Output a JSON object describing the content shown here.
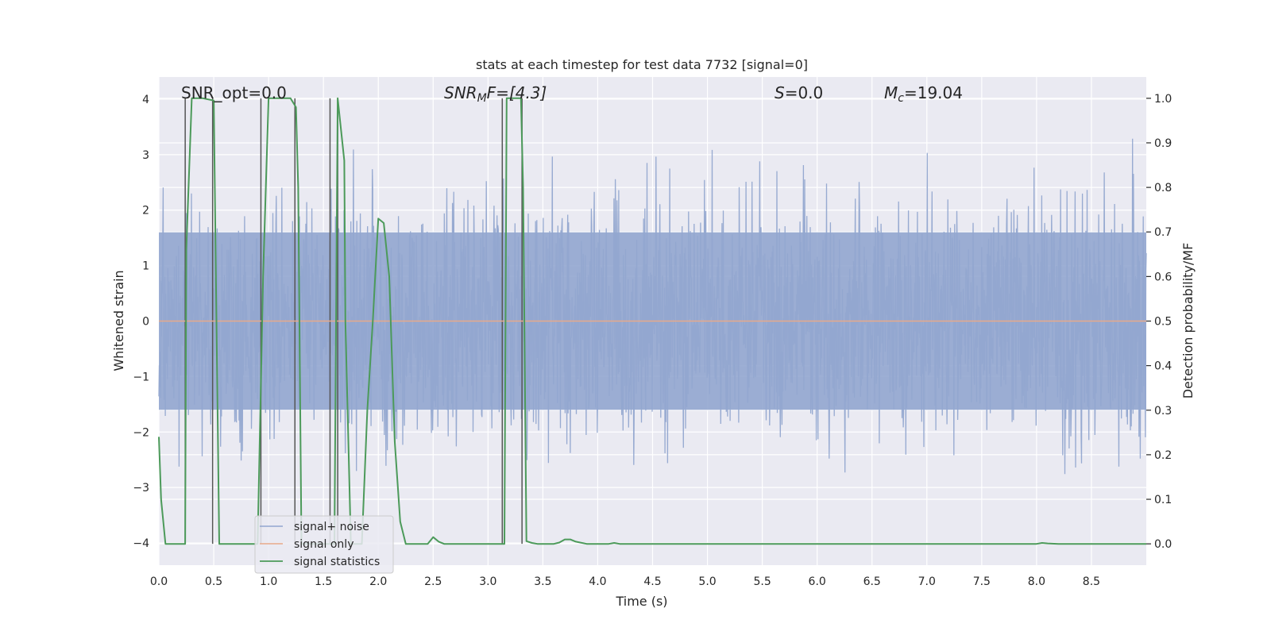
{
  "chart_data": {
    "type": "line",
    "title": "stats at each timestep for test data 7732 [signal=0]",
    "xlabel": "Time (s)",
    "ylabel_left": "Whitened strain",
    "ylabel_right": "Detection probability/MF",
    "xlim": [
      0.0,
      9.0
    ],
    "ylim_left": [
      -4.4,
      4.4
    ],
    "ylim_right": [
      -0.0478,
      1.0478
    ],
    "x_ticks": [
      "0.0",
      "0.5",
      "1.0",
      "1.5",
      "2.0",
      "2.5",
      "3.0",
      "3.5",
      "4.0",
      "4.5",
      "5.0",
      "5.5",
      "6.0",
      "6.5",
      "7.0",
      "7.5",
      "8.0",
      "8.5"
    ],
    "x_tick_values": [
      0.0,
      0.5,
      1.0,
      1.5,
      2.0,
      2.5,
      3.0,
      3.5,
      4.0,
      4.5,
      5.0,
      5.5,
      6.0,
      6.5,
      7.0,
      7.5,
      8.0,
      8.5
    ],
    "y_left_ticks": [
      "−4",
      "−3",
      "−2",
      "−1",
      "0",
      "1",
      "2",
      "3",
      "4"
    ],
    "y_left_tick_values": [
      -4,
      -3,
      -2,
      -1,
      0,
      1,
      2,
      3,
      4
    ],
    "y_right_ticks": [
      "0.0",
      "0.1",
      "0.2",
      "0.3",
      "0.4",
      "0.5",
      "0.6",
      "0.7",
      "0.8",
      "0.9",
      "1.0"
    ],
    "y_right_tick_values": [
      0.0,
      0.1,
      0.2,
      0.3,
      0.4,
      0.5,
      0.6,
      0.7,
      0.8,
      0.9,
      1.0
    ],
    "grid": true,
    "annotations": {
      "snr_opt": "SNR_opt=0.0",
      "snr_mf_prefix": "SNR",
      "snr_mf_sub": "M",
      "snr_mf_suffix": "F=[4.3]",
      "s_symbol": "S",
      "s_value": "=0.0",
      "mc_symbol": "M",
      "mc_sub": "c",
      "mc_value": "=19.04"
    },
    "noise_series": {
      "name": "signal+ noise",
      "color": "#92a6cf",
      "sample_rate_hz": 256,
      "core_amplitude": 1.6,
      "peak_envelope": 4.0
    },
    "signal_only": {
      "name": "signal only",
      "color": "#e8a98a",
      "value": 0.0
    },
    "statistics": {
      "name": "signal statistics",
      "color": "#4c9a5a",
      "x": [
        0.0,
        0.02,
        0.06,
        0.1,
        0.15,
        0.2,
        0.24,
        0.25,
        0.3,
        0.32,
        0.4,
        0.5,
        0.52,
        0.55,
        0.6,
        0.8,
        0.9,
        0.95,
        1.0,
        1.1,
        1.2,
        1.25,
        1.27,
        1.3,
        1.32,
        1.36,
        1.4,
        1.45,
        1.55,
        1.6,
        1.63,
        1.69,
        1.7,
        1.75,
        1.8,
        1.85,
        1.9,
        1.95,
        2.0,
        2.05,
        2.1,
        2.15,
        2.2,
        2.25,
        2.3,
        2.4,
        2.45,
        2.5,
        2.55,
        2.6,
        2.7,
        2.8,
        2.9,
        3.0,
        3.1,
        3.15,
        3.17,
        3.2,
        3.3,
        3.32,
        3.35,
        3.4,
        3.45,
        3.5,
        3.6,
        3.65,
        3.7,
        3.75,
        3.8,
        3.9,
        4.0,
        4.1,
        4.15,
        4.2,
        4.3,
        4.5,
        5.0,
        5.5,
        6.0,
        6.5,
        7.0,
        7.5,
        8.0,
        8.05,
        8.1,
        8.2,
        8.5,
        9.0
      ],
      "y": [
        0.24,
        0.1,
        0.0,
        0.0,
        0.0,
        0.0,
        0.0,
        0.66,
        1.0,
        1.0,
        1.0,
        0.995,
        0.6,
        0.0,
        0.0,
        0.0,
        0.0,
        0.6,
        1.0,
        1.0,
        1.0,
        0.98,
        0.8,
        0.0,
        0.0,
        0.0,
        0.0,
        0.0,
        0.0,
        0.0,
        1.0,
        0.86,
        0.5,
        0.0,
        0.0,
        0.0,
        0.3,
        0.5,
        0.73,
        0.72,
        0.6,
        0.23,
        0.05,
        0.0,
        0.0,
        0.0,
        0.0,
        0.015,
        0.005,
        0.0,
        0.0,
        0.0,
        0.0,
        0.0,
        0.0,
        0.0,
        1.0,
        1.0,
        1.0,
        0.8,
        0.006,
        0.002,
        0.0,
        0.0,
        0.0,
        0.003,
        0.01,
        0.01,
        0.005,
        0.0,
        0.0,
        0.0,
        0.002,
        0.0,
        0.0,
        0.0,
        0.0,
        0.0,
        0.0,
        0.0,
        0.0,
        0.0,
        0.0,
        0.002,
        0.001,
        0.0,
        0.0,
        0.0
      ]
    },
    "vertical_markers_x": [
      0.24,
      0.49,
      0.93,
      1.24,
      1.56,
      1.63,
      3.13,
      3.31
    ],
    "legend": {
      "placement": "lower-left",
      "entries": [
        "signal+ noise",
        "signal only",
        "signal statistics"
      ]
    },
    "colors": {
      "plot_background": "#eaeaf2",
      "grid": "#ffffff",
      "marker": "#555555"
    }
  }
}
